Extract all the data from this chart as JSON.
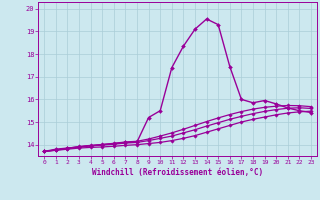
{
  "title": "",
  "xlabel": "Windchill (Refroidissement éolien,°C)",
  "background_color": "#cce8ef",
  "grid_color": "#aacdd8",
  "line_color": "#990099",
  "ylim": [
    13.5,
    20.3
  ],
  "xlim": [
    -0.5,
    23.5
  ],
  "yticks": [
    14,
    15,
    16,
    17,
    18,
    19,
    20
  ],
  "xticks": [
    0,
    1,
    2,
    3,
    4,
    5,
    6,
    7,
    8,
    9,
    10,
    11,
    12,
    13,
    14,
    15,
    16,
    17,
    18,
    19,
    20,
    21,
    22,
    23
  ],
  "series": [
    {
      "x": [
        0,
        1,
        2,
        3,
        4,
        5,
        6,
        7,
        8,
        9,
        10,
        11,
        12,
        13,
        14,
        15,
        16,
        17,
        18,
        19,
        20,
        21,
        22,
        23
      ],
      "y": [
        13.7,
        13.8,
        13.85,
        13.9,
        13.95,
        14.0,
        14.05,
        14.1,
        14.12,
        15.2,
        15.5,
        17.4,
        18.35,
        19.1,
        19.55,
        19.3,
        17.45,
        16.0,
        15.85,
        15.95,
        15.8,
        15.62,
        15.5,
        15.42
      ],
      "marker": "D",
      "markersize": 2.0,
      "linewidth": 1.0
    },
    {
      "x": [
        0,
        1,
        2,
        3,
        4,
        5,
        6,
        7,
        8,
        9,
        10,
        11,
        12,
        13,
        14,
        15,
        16,
        17,
        18,
        19,
        20,
        21,
        22,
        23
      ],
      "y": [
        13.7,
        13.75,
        13.8,
        13.85,
        13.88,
        13.9,
        13.93,
        13.97,
        14.0,
        14.05,
        14.1,
        14.18,
        14.28,
        14.4,
        14.55,
        14.7,
        14.85,
        15.0,
        15.12,
        15.22,
        15.32,
        15.4,
        15.45,
        15.48
      ],
      "marker": "D",
      "markersize": 1.8,
      "linewidth": 0.9
    },
    {
      "x": [
        0,
        1,
        2,
        3,
        4,
        5,
        6,
        7,
        8,
        9,
        10,
        11,
        12,
        13,
        14,
        15,
        16,
        17,
        18,
        19,
        20,
        21,
        22,
        23
      ],
      "y": [
        13.7,
        13.76,
        13.83,
        13.9,
        13.95,
        13.98,
        14.02,
        14.07,
        14.1,
        14.18,
        14.28,
        14.38,
        14.52,
        14.66,
        14.82,
        14.97,
        15.12,
        15.25,
        15.37,
        15.47,
        15.55,
        15.61,
        15.63,
        15.6
      ],
      "marker": "D",
      "markersize": 1.8,
      "linewidth": 0.9
    },
    {
      "x": [
        0,
        1,
        2,
        3,
        4,
        5,
        6,
        7,
        8,
        9,
        10,
        11,
        12,
        13,
        14,
        15,
        16,
        17,
        18,
        19,
        20,
        21,
        22,
        23
      ],
      "y": [
        13.7,
        13.77,
        13.84,
        13.92,
        13.97,
        14.01,
        14.06,
        14.12,
        14.15,
        14.25,
        14.38,
        14.52,
        14.68,
        14.85,
        15.02,
        15.18,
        15.33,
        15.46,
        15.57,
        15.65,
        15.7,
        15.73,
        15.72,
        15.68
      ],
      "marker": "D",
      "markersize": 1.8,
      "linewidth": 0.9
    }
  ]
}
